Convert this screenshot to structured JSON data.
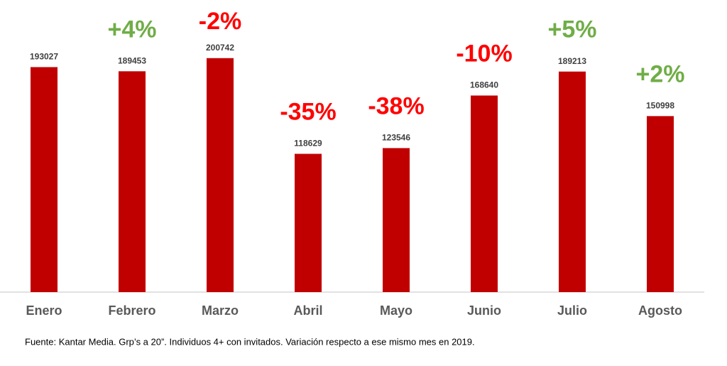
{
  "chart_data": {
    "type": "bar",
    "categories": [
      "Enero",
      "Febrero",
      "Marzo",
      "Abril",
      "Mayo",
      "Junio",
      "Julio",
      "Agosto"
    ],
    "values": [
      193027,
      189453,
      200742,
      118629,
      123546,
      168640,
      189213,
      150998
    ],
    "color": "#c00000",
    "ylim": [
      0,
      250000
    ],
    "annotations": [
      null,
      {
        "text": "+4%",
        "color": "#70ad47"
      },
      {
        "text": "-2%",
        "color": "#ff0000"
      },
      {
        "text": "-35%",
        "color": "#ff0000"
      },
      {
        "text": "-38%",
        "color": "#ff0000"
      },
      {
        "text": "-10%",
        "color": "#ff0000"
      },
      {
        "text": "+5%",
        "color": "#70ad47"
      },
      {
        "text": "+2%",
        "color": "#70ad47"
      }
    ],
    "footnote": "Fuente: Kantar Media. Grp’s a 20”. Individuos  4+ con invitados. Variación respecto a ese mismo mes en 2019."
  }
}
